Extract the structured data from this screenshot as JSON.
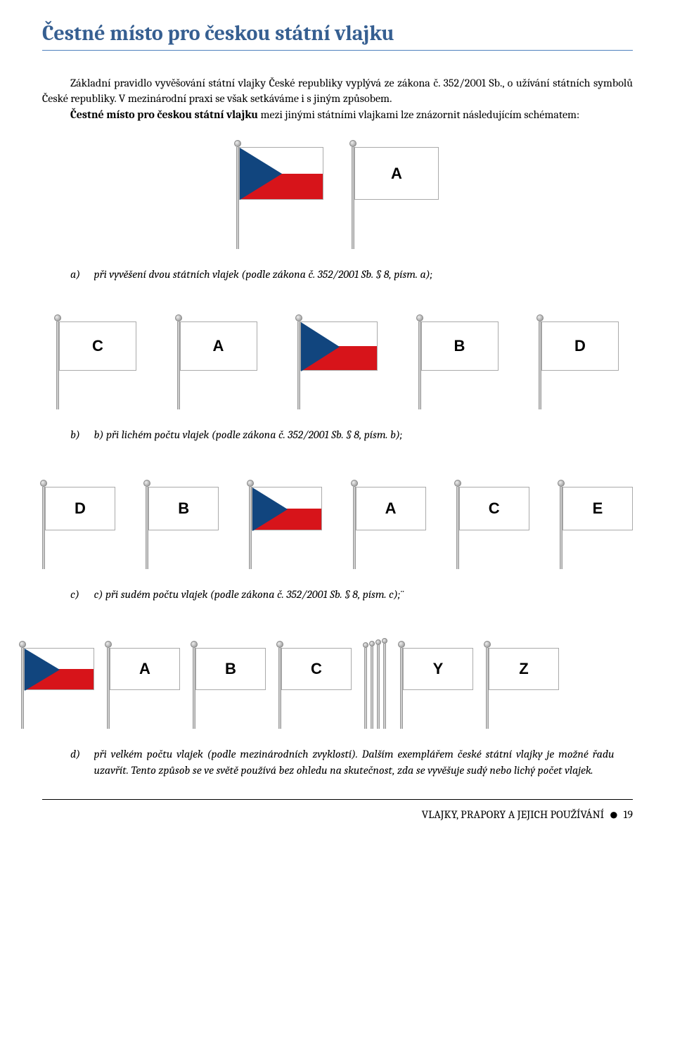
{
  "title": "Čestné místo pro českou státní vlajku",
  "intro": {
    "p1": "Základní pravidlo vyvěšování státní vlajky České republiky vyplývá ze zákona č. 352/2001 Sb., o užívání státních symbolů České republiky. V mezinárodní praxi se však setkáváme i s jiným způsobem.",
    "p2a": "Čestné místo pro českou státní vlajku",
    "p2b": " mezi jinými státními vlajkami lze znázornit následujícím schématem:"
  },
  "czech_colors": {
    "white": "#ffffff",
    "red": "#d7141a",
    "blue": "#11457e"
  },
  "pole_color": "#c8c8c8",
  "flag_border": "#aaaaaa",
  "diagrams": {
    "a": {
      "flags": [
        "CZ",
        "A"
      ],
      "flag_w": 120,
      "flag_h": 75,
      "pole_below": 70
    },
    "b": {
      "flags": [
        "C",
        "A",
        "CZ",
        "B",
        "D"
      ],
      "flag_w": 110,
      "flag_h": 70,
      "pole_below": 55
    },
    "c": {
      "flags": [
        "D",
        "B",
        "CZ",
        "A",
        "C",
        "E"
      ],
      "flag_w": 100,
      "flag_h": 62,
      "pole_below": 55
    },
    "d": {
      "flags": [
        "CZ",
        "A",
        "B",
        "C",
        "...",
        "Y",
        "Z"
      ],
      "flag_w": 100,
      "flag_h": 60,
      "pole_below": 55
    }
  },
  "captions": {
    "a": {
      "marker": "a)",
      "text": "při vyvěšení dvou státních vlajek (podle zákona č. 352/2001 Sb. § 8, písm. a);"
    },
    "b": {
      "marker": "b)",
      "text": "b) při lichém počtu vlajek (podle zákona č. 352/2001 Sb. § 8, písm. b);"
    },
    "c": {
      "marker": "c)",
      "text": "c) při sudém počtu vlajek (podle zákona č. 352/2001 Sb. § 8, písm. c);¨"
    },
    "d": {
      "marker": "d)",
      "text": "při velkém počtu vlajek (podle mezinárodních zvyklostí). Dalším exemplářem české státní vlajky je možné řadu uzavřít. Tento způsob se ve světě používá bez ohledu na skutečnost, zda se vyvěšuje sudý nebo lichý počet vlajek."
    }
  },
  "footer": {
    "text": "VLAJKY, PRAPORY A JEJICH POUŽÍVÁNÍ",
    "page": "19"
  }
}
